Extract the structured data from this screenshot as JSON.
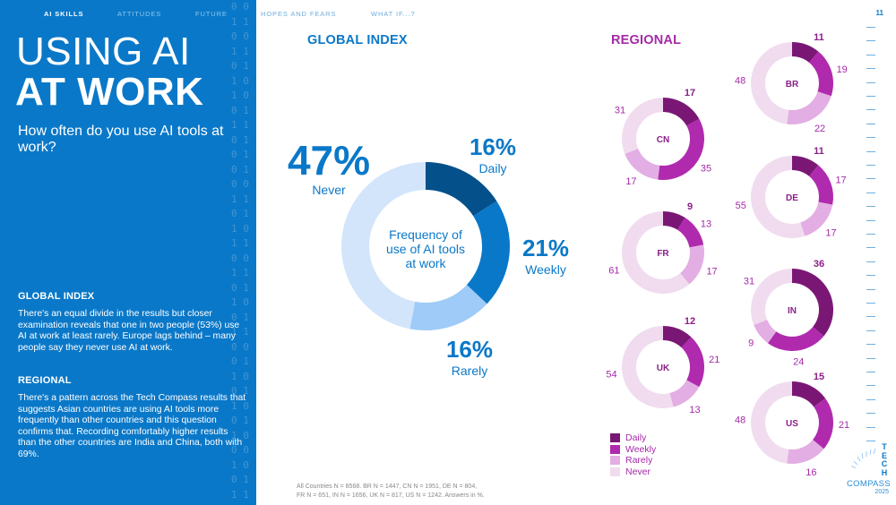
{
  "nav": {
    "items": [
      {
        "label": "AI SKILLS",
        "active": true
      },
      {
        "label": "ATTITUDES",
        "active": false
      },
      {
        "label": "FUTURE",
        "active": false
      },
      {
        "label": "HOPES AND FEARS",
        "active": false
      },
      {
        "label": "WHAT IF...?",
        "active": false
      }
    ]
  },
  "page_number": "11",
  "left_panel": {
    "title_line1": "USING AI",
    "title_line2": "AT WORK",
    "subtitle": "How often do you use AI tools at work?",
    "sections": [
      {
        "heading": "GLOBAL INDEX",
        "body": "There's an equal divide in the results but closer examination reveals that one in two people (53%) use AI at work at least rarely. Europe lags behind – many people say they never use AI at work."
      },
      {
        "heading": "REGIONAL",
        "body": "There's a pattern across the Tech Compass results that suggests Asian countries are using AI tools more frequently than other countries and this question confirms that. Recording comfortably higher results than the other countries are India and China, both with 69%."
      }
    ],
    "binary_pattern": [
      "0 0",
      "1 1",
      "0 0",
      "1 1",
      "0 1",
      "1 0",
      "1 0",
      "0 1",
      "1 1",
      "0 1",
      "0 1",
      "0 1",
      "0 0",
      "1 1",
      "0 1",
      "1 0",
      "1 1",
      "0 0",
      "1 1",
      "0 1",
      "1 0",
      "0 1",
      "1 1",
      "0 0",
      "0 1",
      "1 0",
      "0 1",
      "1 0",
      "0 1",
      "1 0",
      "0 0",
      "1 0",
      "0 1",
      "1 1"
    ]
  },
  "colors": {
    "blue_primary": "#0a78c8",
    "purple_primary": "#a52aa8",
    "global": [
      "#03508a",
      "#0a78c8",
      "#9ecbf7",
      "#d3e5fb"
    ],
    "regional": [
      "#7a1775",
      "#b02aae",
      "#e3aee3",
      "#f1dcef"
    ]
  },
  "chart_data": [
    {
      "type": "pie",
      "title": "GLOBAL INDEX",
      "center_label": "Frequency of use of AI tools at work",
      "categories": [
        "Daily",
        "Weekly",
        "Rarely",
        "Never"
      ],
      "values": [
        16,
        21,
        16,
        47
      ],
      "value_labels": [
        "16%",
        "21%",
        "16%",
        "47%"
      ],
      "unit": "%"
    },
    {
      "type": "pie",
      "title": "REGIONAL",
      "categories": [
        "Daily",
        "Weekly",
        "Rarely",
        "Never"
      ],
      "legend": [
        "Daily",
        "Weekly",
        "Rarely",
        "Never"
      ],
      "legend_position": "bottom-left",
      "series": [
        {
          "name": "CN",
          "values": [
            17,
            35,
            17,
            31
          ]
        },
        {
          "name": "FR",
          "values": [
            9,
            13,
            17,
            61
          ]
        },
        {
          "name": "UK",
          "values": [
            12,
            21,
            13,
            54
          ]
        },
        {
          "name": "BR",
          "values": [
            11,
            19,
            22,
            48
          ]
        },
        {
          "name": "DE",
          "values": [
            11,
            17,
            17,
            55
          ]
        },
        {
          "name": "IN",
          "values": [
            36,
            24,
            9,
            31
          ]
        },
        {
          "name": "US",
          "values": [
            15,
            21,
            16,
            48
          ]
        }
      ]
    }
  ],
  "footnote": {
    "line1": "All Countries N = 8568. BR N = 1447, CN N = 1951, DE N = 804,",
    "line2": "FR N = 651, IN N = 1656, UK N = 817, US N = 1242. Answers in %."
  },
  "logo": {
    "tech": "TECH",
    "compass": "COMPASS",
    "year": "2025"
  }
}
